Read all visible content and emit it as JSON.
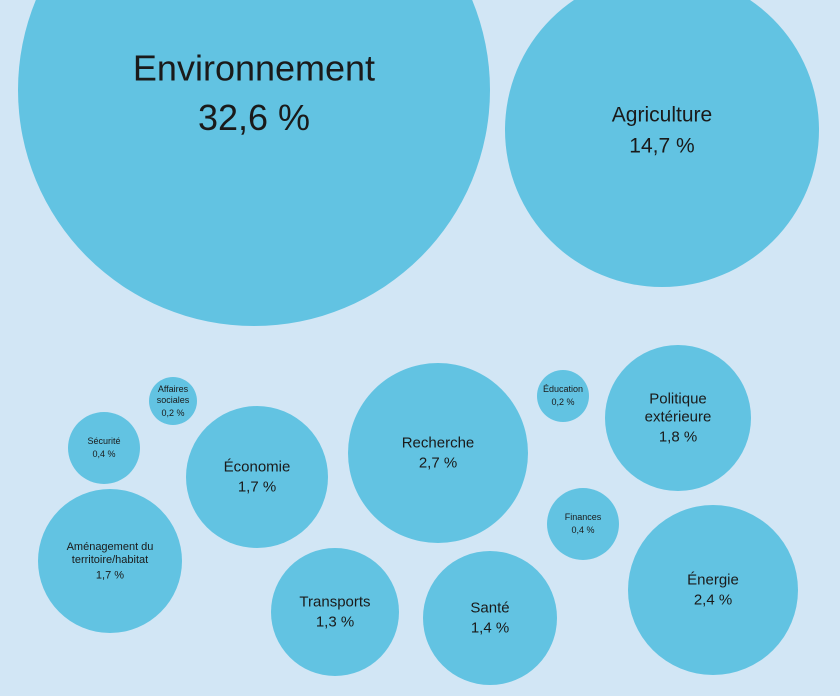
{
  "chart_data": {
    "type": "bubble",
    "colors": {
      "background": "#d2e6f5",
      "bubble": "#62c3e2",
      "text": "#1a1a1a"
    },
    "series": [
      {
        "label": "Environnement",
        "value": 32.6,
        "value_text": "32,6 %"
      },
      {
        "label": "Agriculture",
        "value": 14.7,
        "value_text": "14,7 %"
      },
      {
        "label": "Affaires sociales",
        "value": 0.2,
        "value_text": "0,2 %"
      },
      {
        "label": "Sécurité",
        "value": 0.4,
        "value_text": "0,4 %"
      },
      {
        "label": "Économie",
        "value": 1.7,
        "value_text": "1,7 %"
      },
      {
        "label": "Recherche",
        "value": 2.7,
        "value_text": "2,7 %"
      },
      {
        "label": "Éducation",
        "value": 0.2,
        "value_text": "0,2 %"
      },
      {
        "label": "Politique extérieure",
        "value": 1.8,
        "value_text": "1,8 %"
      },
      {
        "label": "Finances",
        "value": 0.4,
        "value_text": "0,4 %"
      },
      {
        "label": "Aménagement du territoire/habitat",
        "value": 1.7,
        "value_text": "1,7 %"
      },
      {
        "label": "Transports",
        "value": 1.3,
        "value_text": "1,3 %"
      },
      {
        "label": "Santé",
        "value": 1.4,
        "value_text": "1,4 %"
      },
      {
        "label": "Énergie",
        "value": 2.4,
        "value_text": "2,4 %"
      }
    ]
  }
}
